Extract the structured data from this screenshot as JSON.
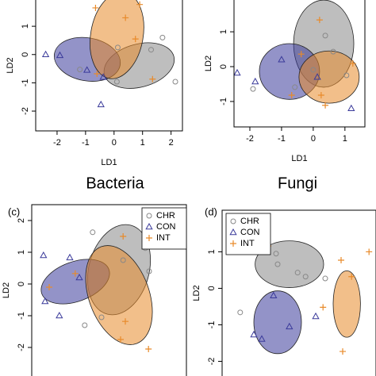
{
  "chart_data": [
    {
      "type": "scatter",
      "caption": "Bacteria",
      "xlabel": "LD1",
      "ylabel": "LD2",
      "xlim": [
        -2.75,
        2.4
      ],
      "ylim": [
        -2.7,
        2.35
      ],
      "xticks": [
        -2,
        -1,
        0,
        1,
        2
      ],
      "yticks": [
        -2,
        -1,
        0,
        1
      ],
      "series": [
        {
          "name": "CHR",
          "color": "#888888",
          "marker": "circle",
          "x": [
            0.1,
            1.7,
            1.3,
            2.15,
            -1.2,
            0.13
          ],
          "y": [
            -0.96,
            0.6,
            0.17,
            -0.96,
            -0.53,
            0.25
          ],
          "ellipse": {
            "cx": 0.88,
            "cy": -0.39,
            "rx": 1.26,
            "ry": 0.76,
            "angle": -15
          }
        },
        {
          "name": "CON",
          "color": "#3a3a9a",
          "marker": "triangle",
          "x": [
            -2.4,
            -1.9,
            -0.95,
            -0.46,
            -0.38
          ],
          "y": [
            0,
            -0.03,
            -0.55,
            -1.77,
            -0.8
          ],
          "ellipse": {
            "cx": -0.94,
            "cy": -0.17,
            "rx": 1.17,
            "ry": 0.76,
            "angle": 10
          }
        },
        {
          "name": "INT",
          "color": "#e88a2a",
          "marker": "plus",
          "x": [
            0.9,
            0.4,
            -0.65,
            0.75,
            1.35,
            -0.6
          ],
          "y": [
            1.77,
            1.3,
            1.65,
            0.55,
            -0.87,
            -0.68
          ],
          "ellipse": {
            "cx": 0.1,
            "cy": 0.68,
            "rx": 0.92,
            "ry": 1.55,
            "angle": 10
          }
        }
      ]
    },
    {
      "type": "scatter",
      "caption": "Fungi",
      "xlabel": "LD1",
      "ylabel": "LD2",
      "xlim": [
        -2.5,
        1.63
      ],
      "ylim": [
        -1.73,
        2.14
      ],
      "xticks": [
        -2,
        -1,
        0,
        1
      ],
      "yticks": [
        -1,
        0,
        1
      ],
      "series": [
        {
          "name": "CHR",
          "color": "#888888",
          "marker": "circle",
          "x": [
            -1.9,
            0,
            0.38,
            0.63,
            1.05,
            -0.58
          ],
          "y": [
            -0.64,
            -0.09,
            0.89,
            0.43,
            -0.25,
            -0.59
          ],
          "ellipse": {
            "cx": 0.33,
            "cy": 0.66,
            "rx": 0.95,
            "ry": 1.25,
            "angle": 0
          }
        },
        {
          "name": "CON",
          "color": "#3a3a9a",
          "marker": "triangle",
          "x": [
            -2.4,
            -1.83,
            -1,
            0.13,
            1.2
          ],
          "y": [
            -0.18,
            -0.43,
            0.2,
            -0.3,
            -1.2
          ],
          "ellipse": {
            "cx": -0.75,
            "cy": -0.14,
            "rx": 0.95,
            "ry": 0.8,
            "angle": 0
          }
        },
        {
          "name": "INT",
          "color": "#e88a2a",
          "marker": "plus",
          "x": [
            0.2,
            0.25,
            -0.38,
            1.25,
            -0.68,
            0.38
          ],
          "y": [
            1.34,
            -0.82,
            0.36,
            0.09,
            -0.82,
            -1.11
          ],
          "ellipse": {
            "cx": 0.5,
            "cy": -0.3,
            "rx": 0.95,
            "ry": 0.75,
            "angle": 0
          }
        }
      ]
    },
    {
      "type": "scatter",
      "label": "(c)",
      "ylabel": "LD2",
      "legend": "top-right",
      "xlim": [
        -2.5,
        2.375
      ],
      "ylim": [
        -3.3,
        2.5
      ],
      "yticks": [
        -2,
        -1,
        0,
        1,
        2
      ],
      "series": [
        {
          "name": "CHR",
          "color": "#888888",
          "marker": "circle",
          "x": [
            -0.58,
            -0.83,
            0.38,
            1.08,
            -0.3,
            1.2
          ],
          "y": [
            1.63,
            -1.3,
            0.75,
            1.13,
            -1.05,
            0.4
          ],
          "ellipse": {
            "cx": 0.25,
            "cy": 0.45,
            "rx": 0.95,
            "ry": 1.45,
            "angle": 15
          }
        },
        {
          "name": "CON",
          "color": "#3a3a9a",
          "marker": "triangle",
          "x": [
            -2.13,
            -1.63,
            -1.3,
            -2.08,
            -1
          ],
          "y": [
            0.9,
            -1,
            0.83,
            -0.55,
            0.2
          ],
          "ellipse": {
            "cx": -1.125,
            "cy": 0.075,
            "rx": 1.125,
            "ry": 0.625,
            "angle": -20
          }
        },
        {
          "name": "INT",
          "color": "#e88a2a",
          "marker": "plus",
          "x": [
            0.38,
            0.3,
            1.18,
            0.45,
            -1.13,
            -1.95
          ],
          "y": [
            1.5,
            -1.75,
            -2.05,
            -1.18,
            0.33,
            -0.1
          ],
          "ellipse": {
            "cx": 0.25,
            "cy": -0.35,
            "rx": 0.95,
            "ry": 1.625,
            "angle": -20
          }
        }
      ]
    },
    {
      "type": "scatter",
      "label": "(d)",
      "ylabel": "LD2",
      "legend": "top-left",
      "xlim": [
        -2.25,
        2.6
      ],
      "ylim": [
        -2.75,
        2.14
      ],
      "yticks": [
        -2,
        -1,
        0,
        1
      ],
      "series": [
        {
          "name": "CHR",
          "color": "#888888",
          "marker": "circle",
          "x": [
            -1.68,
            -0.55,
            -0.5,
            0.13,
            0.38,
            1
          ],
          "y": [
            -0.66,
            0.95,
            0.66,
            0.43,
            0.32,
            0.27
          ],
          "ellipse": {
            "cx": -0.13,
            "cy": 0.66,
            "rx": 1.08,
            "ry": 0.64,
            "angle": 0
          }
        },
        {
          "name": "CON",
          "color": "#3a3a9a",
          "marker": "triangle",
          "x": [
            -1.25,
            -0.63,
            -1,
            -0.13,
            0.7
          ],
          "y": [
            -1.27,
            -0.2,
            -1.39,
            -1.05,
            -0.77
          ],
          "ellipse": {
            "cx": -0.5,
            "cy": -0.93,
            "rx": 0.75,
            "ry": 0.86,
            "angle": 0
          }
        },
        {
          "name": "INT",
          "color": "#e88a2a",
          "marker": "plus",
          "x": [
            -0.8,
            1.5,
            1.83,
            0.93,
            1.55,
            2.38
          ],
          "y": [
            1.16,
            0.77,
            0.32,
            -0.52,
            -1.73,
            1
          ],
          "ellipse": {
            "cx": 1.68,
            "cy": -0.43,
            "rx": 0.43,
            "ry": 0.91,
            "angle": 0
          }
        }
      ]
    }
  ]
}
